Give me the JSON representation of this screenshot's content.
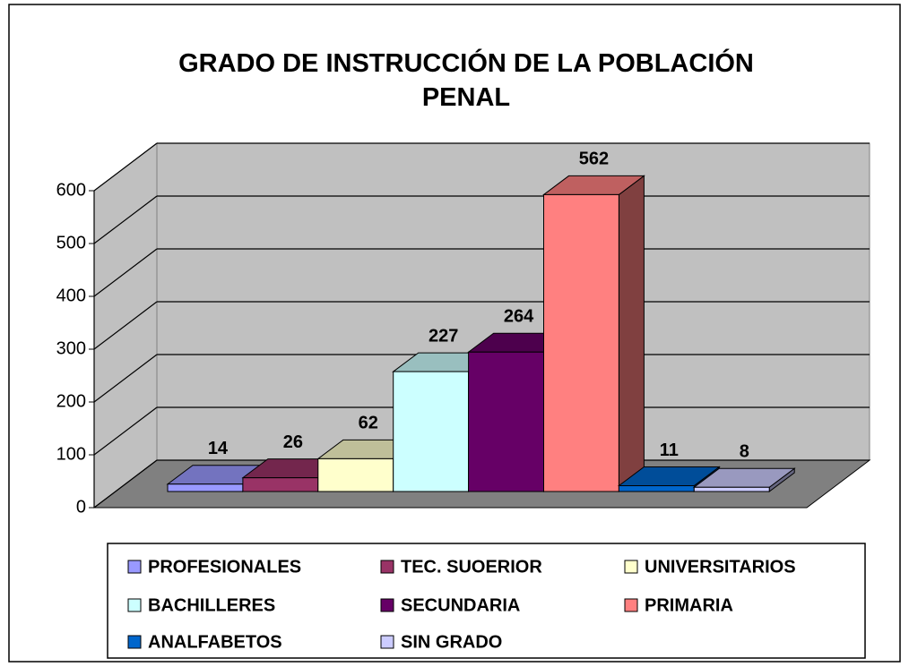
{
  "chart_data": {
    "type": "bar3d",
    "title": "GRADO DE INSTRUCCIÓN DE LA POBLACIÓN PENAL",
    "series": [
      {
        "name": "PROFESIONALES",
        "color": "#9999ff",
        "values": [
          14
        ]
      },
      {
        "name": "TEC. SUOERIOR",
        "color": "#993366",
        "values": [
          26
        ]
      },
      {
        "name": "UNIVERSITARIOS",
        "color": "#ffffcc",
        "values": [
          62
        ]
      },
      {
        "name": "BACHILLERES",
        "color": "#ccffff",
        "values": [
          227
        ]
      },
      {
        "name": "SECUNDARIA",
        "color": "#660066",
        "values": [
          264
        ]
      },
      {
        "name": "PRIMARIA",
        "color": "#ff8080",
        "values": [
          562
        ]
      },
      {
        "name": "ANALFABETOS",
        "color": "#0066cc",
        "values": [
          11
        ]
      },
      {
        "name": "SIN GRADO",
        "color": "#ccccff",
        "values": [
          8
        ]
      }
    ],
    "ylim": [
      0,
      600
    ],
    "yticks": [
      0,
      100,
      200,
      300,
      400,
      500,
      600
    ],
    "grid": true
  }
}
